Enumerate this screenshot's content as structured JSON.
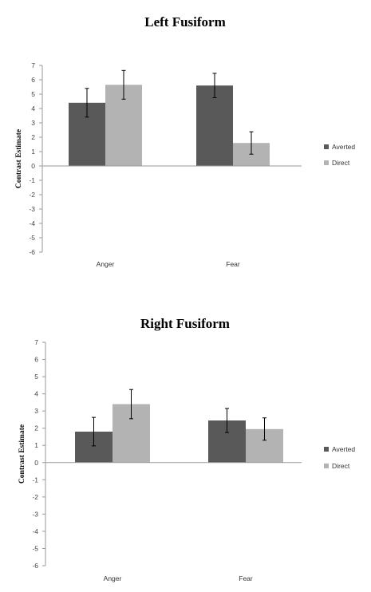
{
  "chart_data": [
    {
      "type": "bar",
      "title": "Left Fusiform",
      "ylabel": "Contrast Estimate",
      "xlabel": "",
      "categories": [
        "Anger",
        "Fear"
      ],
      "ylim": [
        -6,
        7
      ],
      "yticks": [
        7,
        6,
        5,
        4,
        3,
        2,
        1,
        0,
        -1,
        -2,
        -3,
        -4,
        -5,
        -6
      ],
      "series": [
        {
          "name": "Averted",
          "values": [
            4.4,
            5.6
          ],
          "errors": [
            1.0,
            0.85
          ],
          "color": "#595959"
        },
        {
          "name": "Direct",
          "values": [
            5.65,
            1.6
          ],
          "errors": [
            1.0,
            0.78
          ],
          "color": "#b3b3b3"
        }
      ],
      "legend": "right",
      "grid": false
    },
    {
      "type": "bar",
      "title": "Right Fusiform",
      "ylabel": "Contrast Estimate",
      "xlabel": "",
      "categories": [
        "Anger",
        "Fear"
      ],
      "ylim": [
        -6,
        7
      ],
      "yticks": [
        7,
        6,
        5,
        4,
        3,
        2,
        1,
        0,
        -1,
        -2,
        -3,
        -4,
        -5,
        -6
      ],
      "series": [
        {
          "name": "Averted",
          "values": [
            1.8,
            2.45
          ],
          "errors": [
            0.83,
            0.7
          ],
          "color": "#595959"
        },
        {
          "name": "Direct",
          "values": [
            3.4,
            1.95
          ],
          "errors": [
            0.85,
            0.65
          ],
          "color": "#b3b3b3"
        }
      ],
      "legend": "right",
      "grid": false
    }
  ]
}
